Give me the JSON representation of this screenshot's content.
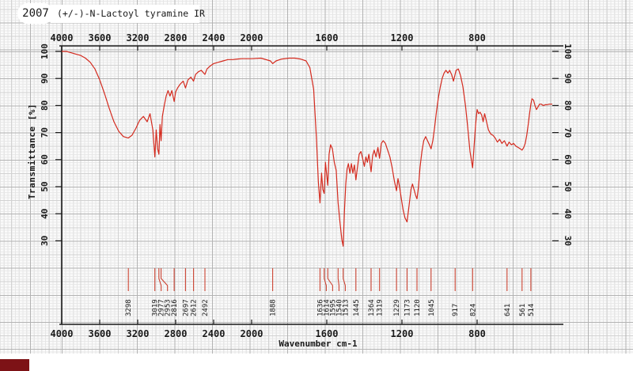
{
  "header": {
    "year": "2007",
    "title": "(+/-)-N-Lactoyl tyramine IR"
  },
  "axes": {
    "x_label": "Wavenumber cm-1",
    "y_label": "Transmittance [%]",
    "x_ticks": [
      4000,
      3600,
      3200,
      2800,
      2400,
      2000,
      1600,
      1200,
      800
    ],
    "y_ticks": [
      100,
      90,
      80,
      70,
      60,
      50,
      40,
      30
    ]
  },
  "colors": {
    "curve": "#d42a1e",
    "peak_tick": "#cc4433",
    "peak_label": "#222222",
    "axis": "#1a1a1a",
    "corner_box": "#7d1216"
  },
  "chart_data": {
    "type": "line",
    "title": "(+/-)-N-Lactoyl tyramine IR",
    "xlabel": "Wavenumber cm-1",
    "ylabel": "Transmittance [%]",
    "x_axis": {
      "min": 400,
      "max": 4000,
      "reversed": true,
      "scale_change_at": 2000
    },
    "ylim": [
      0,
      100
    ],
    "y_tick_values": [
      100,
      90,
      80,
      70,
      60,
      50,
      40,
      30
    ],
    "x_tick_values": [
      4000,
      3600,
      3200,
      2800,
      2400,
      2000,
      1600,
      1200,
      800
    ],
    "grid": true,
    "peaks": [
      3298,
      3019,
      2977,
      2953,
      2816,
      2697,
      2612,
      2492,
      1888,
      1636,
      1614,
      1595,
      1540,
      1513,
      1445,
      1364,
      1319,
      1229,
      1173,
      1120,
      1045,
      917,
      824,
      641,
      561,
      514
    ],
    "curve": [
      [
        4000,
        100
      ],
      [
        3950,
        100
      ],
      [
        3900,
        99.5
      ],
      [
        3850,
        99
      ],
      [
        3800,
        98.5
      ],
      [
        3750,
        97.5
      ],
      [
        3700,
        96
      ],
      [
        3650,
        93.5
      ],
      [
        3600,
        89.5
      ],
      [
        3550,
        84.5
      ],
      [
        3500,
        79
      ],
      [
        3450,
        74
      ],
      [
        3400,
        70.5
      ],
      [
        3350,
        68.5
      ],
      [
        3298,
        68
      ],
      [
        3260,
        69
      ],
      [
        3220,
        71.5
      ],
      [
        3180,
        74.5
      ],
      [
        3140,
        76
      ],
      [
        3100,
        74
      ],
      [
        3070,
        77
      ],
      [
        3040,
        71
      ],
      [
        3019,
        61
      ],
      [
        3005,
        71
      ],
      [
        2990,
        64
      ],
      [
        2977,
        62
      ],
      [
        2965,
        73
      ],
      [
        2953,
        67
      ],
      [
        2940,
        76
      ],
      [
        2920,
        80
      ],
      [
        2900,
        83.5
      ],
      [
        2880,
        85.5
      ],
      [
        2860,
        83.5
      ],
      [
        2840,
        85.5
      ],
      [
        2816,
        81.5
      ],
      [
        2800,
        85
      ],
      [
        2780,
        86.5
      ],
      [
        2750,
        88
      ],
      [
        2720,
        89
      ],
      [
        2697,
        86.5
      ],
      [
        2670,
        89.5
      ],
      [
        2640,
        90.5
      ],
      [
        2612,
        89
      ],
      [
        2590,
        91.5
      ],
      [
        2560,
        92.5
      ],
      [
        2530,
        93
      ],
      [
        2492,
        91.5
      ],
      [
        2470,
        93.5
      ],
      [
        2440,
        94.5
      ],
      [
        2400,
        95.5
      ],
      [
        2350,
        96
      ],
      [
        2300,
        96.5
      ],
      [
        2250,
        97
      ],
      [
        2200,
        97
      ],
      [
        2150,
        97.2
      ],
      [
        2100,
        97.3
      ],
      [
        2050,
        97.3
      ],
      [
        2000,
        97.3
      ],
      [
        1950,
        97.5
      ],
      [
        1900,
        96.5
      ],
      [
        1888,
        95.5
      ],
      [
        1870,
        96.5
      ],
      [
        1840,
        97.2
      ],
      [
        1800,
        97.5
      ],
      [
        1770,
        97.5
      ],
      [
        1740,
        97.2
      ],
      [
        1710,
        96.5
      ],
      [
        1690,
        94
      ],
      [
        1670,
        86
      ],
      [
        1655,
        68
      ],
      [
        1645,
        52
      ],
      [
        1636,
        44
      ],
      [
        1628,
        55
      ],
      [
        1621,
        49
      ],
      [
        1614,
        47.5
      ],
      [
        1607,
        59
      ],
      [
        1600,
        54
      ],
      [
        1595,
        50.5
      ],
      [
        1588,
        62
      ],
      [
        1580,
        65.5
      ],
      [
        1570,
        64
      ],
      [
        1560,
        59
      ],
      [
        1550,
        56
      ],
      [
        1540,
        44
      ],
      [
        1530,
        37
      ],
      [
        1520,
        30.5
      ],
      [
        1513,
        28
      ],
      [
        1506,
        41
      ],
      [
        1499,
        51
      ],
      [
        1492,
        56.5
      ],
      [
        1485,
        58.5
      ],
      [
        1477,
        55
      ],
      [
        1469,
        58.5
      ],
      [
        1461,
        55
      ],
      [
        1453,
        58
      ],
      [
        1445,
        52.5
      ],
      [
        1437,
        57
      ],
      [
        1428,
        62
      ],
      [
        1418,
        63
      ],
      [
        1408,
        60
      ],
      [
        1400,
        57.5
      ],
      [
        1392,
        61
      ],
      [
        1384,
        59
      ],
      [
        1376,
        62
      ],
      [
        1369,
        58
      ],
      [
        1364,
        55.5
      ],
      [
        1356,
        61.5
      ],
      [
        1348,
        63.5
      ],
      [
        1338,
        61
      ],
      [
        1328,
        64.5
      ],
      [
        1319,
        60.5
      ],
      [
        1310,
        66
      ],
      [
        1300,
        67
      ],
      [
        1288,
        66
      ],
      [
        1276,
        63.5
      ],
      [
        1264,
        61
      ],
      [
        1252,
        57
      ],
      [
        1240,
        52
      ],
      [
        1229,
        48.5
      ],
      [
        1221,
        53
      ],
      [
        1213,
        50
      ],
      [
        1204,
        46
      ],
      [
        1194,
        41.5
      ],
      [
        1184,
        38.5
      ],
      [
        1173,
        37
      ],
      [
        1162,
        43
      ],
      [
        1152,
        49
      ],
      [
        1144,
        51
      ],
      [
        1136,
        49
      ],
      [
        1128,
        47
      ],
      [
        1120,
        45.5
      ],
      [
        1112,
        50
      ],
      [
        1104,
        57
      ],
      [
        1094,
        63
      ],
      [
        1084,
        67
      ],
      [
        1074,
        68.5
      ],
      [
        1064,
        67
      ],
      [
        1054,
        65.5
      ],
      [
        1045,
        64
      ],
      [
        1036,
        67
      ],
      [
        1026,
        72
      ],
      [
        1016,
        78
      ],
      [
        1006,
        83
      ],
      [
        996,
        87
      ],
      [
        986,
        90
      ],
      [
        976,
        92
      ],
      [
        966,
        93
      ],
      [
        956,
        92
      ],
      [
        946,
        93
      ],
      [
        936,
        91.5
      ],
      [
        926,
        89
      ],
      [
        912,
        93
      ],
      [
        900,
        93.5
      ],
      [
        888,
        91
      ],
      [
        876,
        87
      ],
      [
        862,
        80
      ],
      [
        850,
        72
      ],
      [
        838,
        63
      ],
      [
        824,
        57
      ],
      [
        815,
        66
      ],
      [
        808,
        73
      ],
      [
        800,
        78.5
      ],
      [
        792,
        77
      ],
      [
        784,
        77.5
      ],
      [
        776,
        76.5
      ],
      [
        768,
        74
      ],
      [
        760,
        77
      ],
      [
        750,
        74
      ],
      [
        740,
        71
      ],
      [
        728,
        69.5
      ],
      [
        716,
        69
      ],
      [
        704,
        68
      ],
      [
        692,
        66.5
      ],
      [
        680,
        67.5
      ],
      [
        668,
        66
      ],
      [
        655,
        67
      ],
      [
        641,
        65
      ],
      [
        630,
        66.5
      ],
      [
        618,
        65.5
      ],
      [
        606,
        66
      ],
      [
        594,
        65
      ],
      [
        582,
        64.5
      ],
      [
        570,
        64
      ],
      [
        561,
        63.5
      ],
      [
        552,
        64.5
      ],
      [
        544,
        66
      ],
      [
        536,
        69
      ],
      [
        528,
        73
      ],
      [
        520,
        77.5
      ],
      [
        514,
        80.5
      ],
      [
        508,
        82.5
      ],
      [
        500,
        82
      ],
      [
        492,
        80
      ],
      [
        484,
        78.5
      ],
      [
        476,
        79.5
      ],
      [
        468,
        80.5
      ],
      [
        458,
        80.5
      ],
      [
        448,
        80
      ],
      [
        438,
        80.3
      ],
      [
        428,
        80.3
      ],
      [
        415,
        80.5
      ],
      [
        400,
        80.5
      ]
    ]
  }
}
